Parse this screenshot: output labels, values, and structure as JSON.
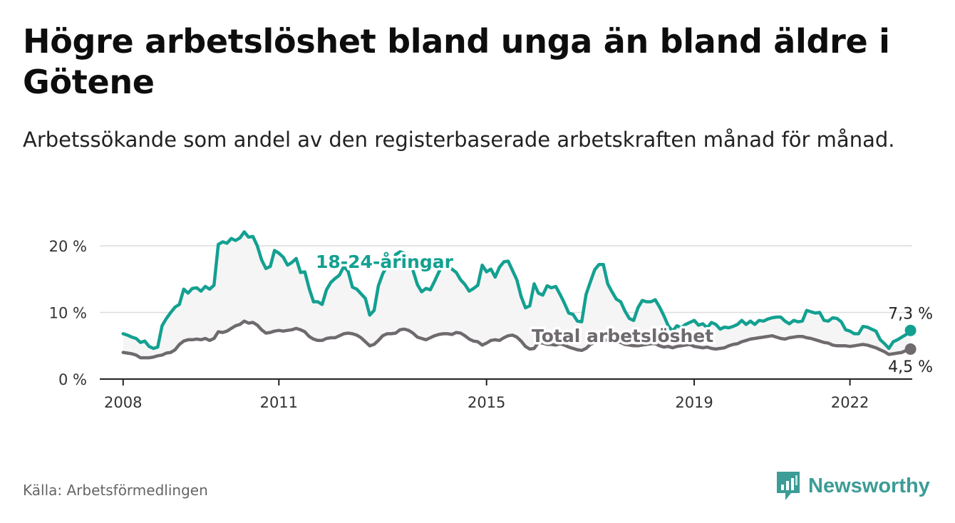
{
  "title": "Högre arbetslöshet bland unga än bland äldre i Götene",
  "subtitle": "Arbetssökande som andel av den registerbaserade arbetskraften månad för månad.",
  "source": "Källa: Arbetsförmedlingen",
  "brand": "Newsworthy",
  "colors": {
    "youth": "#13a091",
    "total": "#6e6a6e",
    "fill": "#f5f5f5",
    "grid": "#dcdcdc",
    "brand": "#3c9c96"
  },
  "chart_data": {
    "type": "line",
    "title": "Högre arbetslöshet bland unga än bland äldre i Götene",
    "xlabel": "",
    "ylabel": "",
    "x_start": 2008.0,
    "x_step_months": 1,
    "xlim": [
      2007.55,
      2023.2
    ],
    "ylim": [
      0,
      20
    ],
    "yticks": [
      {
        "value": 0,
        "label": "0 %"
      },
      {
        "value": 10,
        "label": "10 %"
      },
      {
        "value": 20,
        "label": "20 %"
      }
    ],
    "xticks": [
      {
        "value": 2008,
        "label": "2008"
      },
      {
        "value": 2011,
        "label": "2011"
      },
      {
        "value": 2015,
        "label": "2015"
      },
      {
        "value": 2019,
        "label": "2019"
      },
      {
        "value": 2022,
        "label": "2022"
      }
    ],
    "grid": true,
    "series": [
      {
        "name": "18-24-åringar",
        "label": "18-24-åringar",
        "end_label": "7,3 %",
        "values": [
          6.8,
          6.6,
          6.3,
          6.1,
          5.5,
          5.7,
          4.9,
          4.6,
          4.8,
          8.0,
          9.1,
          10.0,
          10.8,
          11.2,
          13.5,
          12.9,
          13.6,
          13.7,
          13.2,
          13.9,
          13.5,
          14.1,
          20.2,
          20.6,
          20.4,
          21.1,
          20.8,
          21.2,
          22.1,
          21.3,
          21.4,
          20.0,
          17.9,
          16.6,
          16.9,
          19.3,
          18.9,
          18.3,
          17.1,
          17.5,
          18.1,
          16.0,
          16.1,
          13.6,
          11.6,
          11.6,
          11.2,
          13.4,
          14.5,
          15.1,
          15.6,
          16.9,
          16.2,
          13.8,
          13.5,
          12.8,
          12.1,
          9.6,
          10.3,
          14.0,
          15.8,
          17.0,
          16.7,
          18.7,
          19.1,
          18.9,
          18.1,
          16.3,
          14.2,
          13.1,
          13.6,
          13.4,
          14.7,
          16.1,
          17.2,
          16.9,
          16.5,
          16.0,
          14.9,
          14.2,
          13.2,
          13.6,
          14.1,
          17.1,
          16.1,
          16.5,
          15.3,
          16.8,
          17.6,
          17.7,
          16.3,
          14.9,
          12.4,
          10.7,
          11.0,
          14.3,
          12.9,
          12.6,
          14.0,
          13.7,
          13.9,
          12.7,
          11.4,
          9.9,
          9.7,
          8.7,
          8.6,
          12.7,
          14.6,
          16.4,
          17.2,
          17.2,
          14.3,
          13.1,
          12.0,
          11.6,
          10.2,
          9.1,
          8.8,
          10.7,
          11.8,
          11.6,
          11.6,
          11.9,
          10.8,
          9.5,
          8.0,
          7.2,
          8.0,
          7.7,
          8.2,
          8.5,
          8.8,
          8.1,
          8.3,
          7.7,
          8.5,
          8.2,
          7.5,
          7.8,
          7.7,
          7.9,
          8.2,
          8.8,
          8.2,
          8.7,
          8.2,
          8.8,
          8.7,
          9.0,
          9.2,
          9.3,
          9.3,
          8.7,
          8.3,
          8.8,
          8.6,
          8.7,
          10.3,
          10.1,
          9.9,
          10.0,
          8.8,
          8.7,
          9.2,
          9.1,
          8.6,
          7.4,
          7.2,
          6.8,
          6.8,
          7.9,
          7.8,
          7.5,
          7.2,
          5.9,
          5.3,
          4.6,
          5.6,
          5.9,
          6.3,
          6.7,
          7.3
        ],
        "end_value": 7.3
      },
      {
        "name": "Total arbetslöshet",
        "label": "Total arbetslöshet",
        "end_label": "4,5 %",
        "values": [
          4.0,
          3.9,
          3.8,
          3.6,
          3.2,
          3.2,
          3.2,
          3.3,
          3.5,
          3.6,
          3.9,
          4.0,
          4.4,
          5.2,
          5.7,
          5.9,
          5.9,
          6.0,
          5.9,
          6.1,
          5.8,
          6.1,
          7.1,
          7.0,
          7.2,
          7.6,
          8.0,
          8.2,
          8.7,
          8.4,
          8.5,
          8.1,
          7.4,
          6.9,
          7.0,
          7.2,
          7.3,
          7.2,
          7.3,
          7.4,
          7.6,
          7.4,
          7.1,
          6.4,
          6.0,
          5.8,
          5.8,
          6.1,
          6.2,
          6.2,
          6.5,
          6.8,
          6.9,
          6.8,
          6.6,
          6.2,
          5.6,
          5.0,
          5.2,
          5.8,
          6.5,
          6.8,
          6.8,
          6.9,
          7.4,
          7.5,
          7.3,
          6.9,
          6.3,
          6.1,
          5.9,
          6.2,
          6.5,
          6.7,
          6.8,
          6.8,
          6.7,
          7.0,
          6.9,
          6.5,
          6.0,
          5.7,
          5.6,
          5.1,
          5.4,
          5.8,
          5.9,
          5.8,
          6.2,
          6.5,
          6.6,
          6.3,
          5.7,
          4.9,
          4.5,
          4.6,
          5.5,
          5.4,
          5.2,
          5.2,
          5.1,
          5.3,
          5.1,
          4.8,
          4.6,
          4.4,
          4.3,
          4.6,
          5.2,
          5.5,
          5.8,
          5.9,
          5.8,
          5.8,
          5.6,
          5.5,
          5.2,
          5.1,
          5.0,
          5.0,
          5.1,
          5.2,
          5.3,
          5.3,
          5.0,
          4.8,
          4.9,
          4.7,
          4.9,
          5.0,
          5.1,
          5.2,
          4.9,
          4.8,
          4.7,
          4.8,
          4.6,
          4.5,
          4.6,
          4.7,
          5.0,
          5.2,
          5.3,
          5.6,
          5.8,
          6.0,
          6.1,
          6.2,
          6.3,
          6.4,
          6.5,
          6.3,
          6.1,
          6.0,
          6.2,
          6.3,
          6.4,
          6.4,
          6.2,
          6.1,
          5.9,
          5.7,
          5.5,
          5.4,
          5.1,
          5.0,
          5.0,
          5.0,
          4.9,
          5.0,
          5.1,
          5.2,
          5.1,
          4.9,
          4.7,
          4.4,
          4.1,
          3.7,
          3.8,
          3.9,
          4.0,
          4.3,
          4.5
        ],
        "end_value": 4.5
      }
    ]
  }
}
